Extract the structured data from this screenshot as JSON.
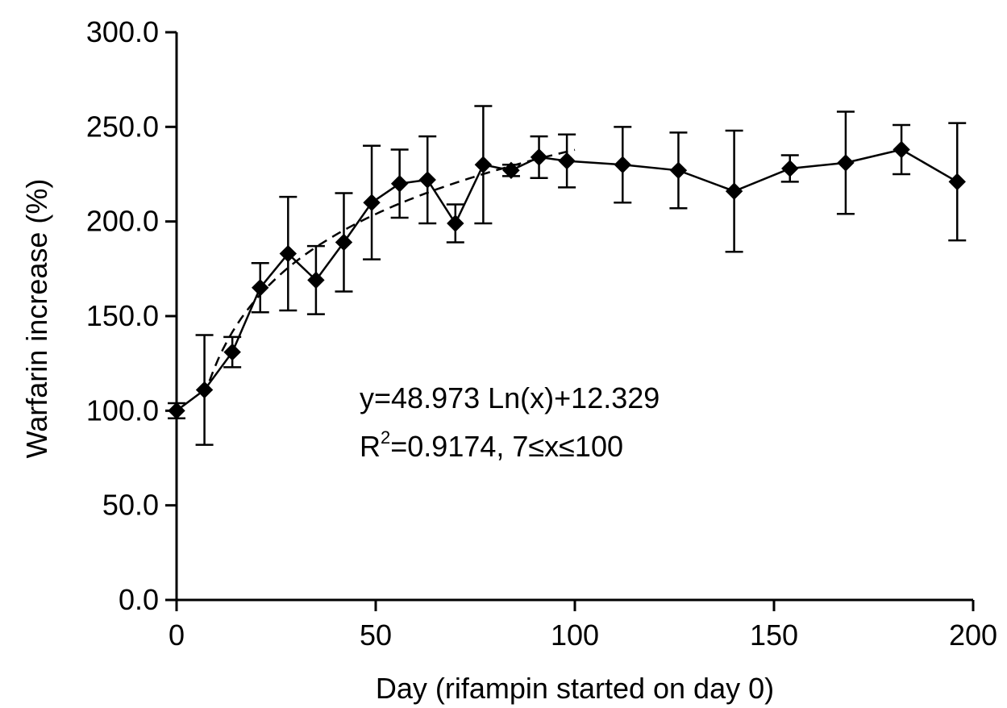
{
  "chart_data": {
    "type": "line",
    "xlabel": "Day (rifampin started on day 0)",
    "ylabel": "Warfarin increase (%)",
    "xlim": [
      0,
      200
    ],
    "ylim": [
      0,
      300
    ],
    "x_ticks": [
      0,
      50,
      100,
      150,
      200
    ],
    "x_tick_labels": [
      "0",
      "50",
      "100",
      "150",
      "200"
    ],
    "y_ticks": [
      0,
      50,
      100,
      150,
      200,
      250,
      300
    ],
    "y_tick_labels": [
      "0.0",
      "50.0",
      "100.0",
      "150.0",
      "200.0",
      "250.0",
      "300.0"
    ],
    "grid": false,
    "series": [
      {
        "style": "solid line with diamond markers and error bars",
        "color": "#000000",
        "points": [
          {
            "x": 0,
            "y": 100,
            "err": 4
          },
          {
            "x": 7,
            "y": 111,
            "err": 29
          },
          {
            "x": 14,
            "y": 131,
            "err": 8
          },
          {
            "x": 21,
            "y": 165,
            "err": 13
          },
          {
            "x": 28,
            "y": 183,
            "err": 30
          },
          {
            "x": 35,
            "y": 169,
            "err": 18
          },
          {
            "x": 42,
            "y": 189,
            "err": 26
          },
          {
            "x": 49,
            "y": 210,
            "err": 30
          },
          {
            "x": 56,
            "y": 220,
            "err": 18
          },
          {
            "x": 63,
            "y": 222,
            "err": 23
          },
          {
            "x": 70,
            "y": 199,
            "err": 10
          },
          {
            "x": 77,
            "y": 230,
            "err": 31
          },
          {
            "x": 84,
            "y": 227,
            "err": 3
          },
          {
            "x": 91,
            "y": 234,
            "err": 11
          },
          {
            "x": 98,
            "y": 232,
            "err": 14
          },
          {
            "x": 112,
            "y": 230,
            "err": 20
          },
          {
            "x": 126,
            "y": 227,
            "err": 20
          },
          {
            "x": 140,
            "y": 216,
            "err": 32
          },
          {
            "x": 154,
            "y": 228,
            "err": 7
          },
          {
            "x": 168,
            "y": 231,
            "err": 27
          },
          {
            "x": 182,
            "y": 238,
            "err": 13
          },
          {
            "x": 196,
            "y": 221,
            "err": 31
          }
        ]
      }
    ],
    "fit": {
      "style": "dashed",
      "a": 48.973,
      "b": 12.329,
      "x_range": [
        7,
        100
      ]
    },
    "annotations": [
      "y=48.973 Ln(x)+12.329",
      "R",
      "2",
      "=0.9174, 7≤x≤100"
    ]
  }
}
